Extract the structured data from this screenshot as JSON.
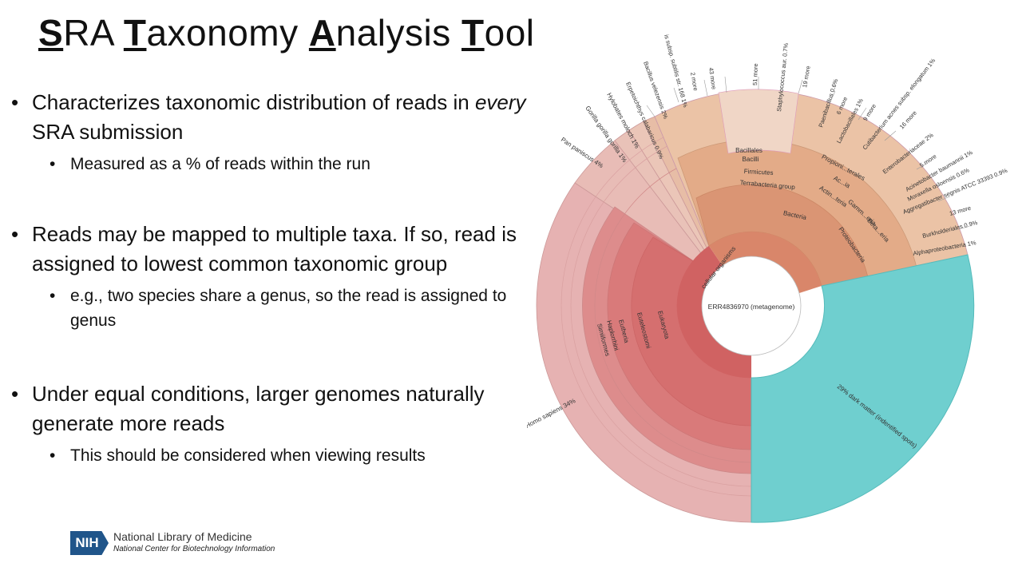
{
  "slide": {
    "title": {
      "w1_cap": "S",
      "w1_rest": "RA ",
      "w2_cap": "T",
      "w2_rest": "axonomy ",
      "w3_cap": "A",
      "w3_rest": "nalysis ",
      "w4_cap": "T",
      "w4_rest": "ool"
    },
    "bullets": [
      {
        "text_a": "Characterizes taxonomic distribution of reads in ",
        "text_em": "every",
        "text_b": " SRA submission",
        "sub": "Measured as a % of reads within the run"
      },
      {
        "text": "Reads may be mapped to multiple taxa. If so, read is assigned to lowest common taxonomic group",
        "sub": "e.g., two species share a genus, so the read is assigned to genus"
      },
      {
        "text": "Under equal conditions, larger genomes naturally generate more reads",
        "sub": "This should be considered when viewing results"
      }
    ],
    "footer": {
      "logo": "NIH",
      "line1": "National Library of Medicine",
      "line2": "National Center for Biotechnology Information"
    }
  },
  "chart_data": {
    "type": "sunburst",
    "center_label": "ERR4836970 (metagenome)",
    "colors": {
      "eukaryota": "#e4a8a8",
      "eukaryota_inner": "#d66a6a",
      "bacteria": "#e3a882",
      "bacteria_inner": "#d99070",
      "dark_matter": "#6fcfcf",
      "root": "#d06060"
    },
    "slices": [
      {
        "name": "dark matter (indentified spots)",
        "percent": 29,
        "label": "29%  dark matter (indentified spots)"
      },
      {
        "name": "Homo sapiens",
        "percent": 34,
        "label": "Homo sapiens  34%"
      },
      {
        "name": "Pan paniscus",
        "percent": 4,
        "label": "Pan paniscus  4%"
      },
      {
        "name": "Gorilla gorilla gorilla",
        "percent": 1,
        "label": "Gorilla gorilla gorilla  1%"
      },
      {
        "name": "Hylobates moloch",
        "percent": 1,
        "label": "Hylobates moloch  1%"
      }
    ],
    "ring_labels": {
      "eukaryota_path": [
        "cellular organisms",
        "Eukaryota",
        "Euteleostomi",
        "Eutheria",
        "Haplorrhini",
        "Simiiformes"
      ],
      "bacteria_path": [
        "Bacteria",
        "Terrabacteria group",
        "Firmicutes",
        "Bacilli",
        "Bacillales"
      ],
      "proteobacteria_path": [
        "Proteobacteria",
        "Gamm...eria",
        "Beta...eria"
      ],
      "actino_path": [
        "Actin...teria",
        "Ac...ia",
        "Propioni...terales"
      ]
    },
    "outer_labels": [
      "Erpetoichthys calabaricus  0.9%",
      "Bacillus velezensis  2%",
      "is subsp. subtilis str. 168  1%",
      "2 more",
      "43 more",
      "51 more",
      "Staphylococcus aur.  0.7%",
      "19 more",
      "Paenibacillus  0.6%",
      "6 more",
      "Lactobacillales  1%",
      "9 more",
      "Cutibacterium acnes subsp. elongatum  1%",
      "16 more",
      "Enterobacteriaceae  2%",
      "5 more",
      "Acinetobacter baumannii  1%",
      "Moraxella osloensis  0.6%",
      "Aggregatibacter segnis ATCC 33393  0.9%",
      "13 more",
      "Burkholderiales  0.9%",
      "Alphaproteobacteria  1%"
    ]
  }
}
